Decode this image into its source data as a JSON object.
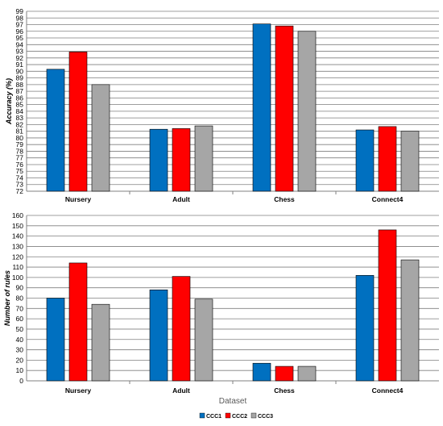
{
  "chart_data": [
    {
      "type": "bar",
      "title": "",
      "xlabel": "",
      "ylabel": "Accuracy (%)",
      "ylim": [
        72,
        99
      ],
      "ytick_step": 1,
      "grid": true,
      "categories": [
        "Nursery",
        "Adult",
        "Chess",
        "Connect4"
      ],
      "series": [
        {
          "name": "CCC1",
          "color": "#0070c0",
          "values": [
            90.3,
            81.3,
            97.1,
            81.2
          ]
        },
        {
          "name": "CCC2",
          "color": "#ff0000",
          "values": [
            92.9,
            81.4,
            96.8,
            81.7
          ]
        },
        {
          "name": "CCC3",
          "color": "#a6a6a6",
          "values": [
            88.0,
            81.8,
            96.0,
            81.0
          ]
        }
      ]
    },
    {
      "type": "bar",
      "title": "",
      "xlabel": "Dataset",
      "ylabel": "Number of rules",
      "ylim": [
        0,
        160
      ],
      "ytick_step": 10,
      "grid": true,
      "categories": [
        "Nursery",
        "Adult",
        "Chess",
        "Connect4"
      ],
      "series": [
        {
          "name": "CCC1",
          "color": "#0070c0",
          "values": [
            80,
            88,
            17,
            102
          ]
        },
        {
          "name": "CCC2",
          "color": "#ff0000",
          "values": [
            114,
            101,
            14,
            146
          ]
        },
        {
          "name": "CCC3",
          "color": "#a6a6a6",
          "values": [
            74,
            79,
            14,
            117
          ]
        }
      ]
    }
  ],
  "legend": {
    "placement": "bottom-center",
    "items": [
      "CCC1",
      "CCC2",
      "CCC3"
    ]
  }
}
